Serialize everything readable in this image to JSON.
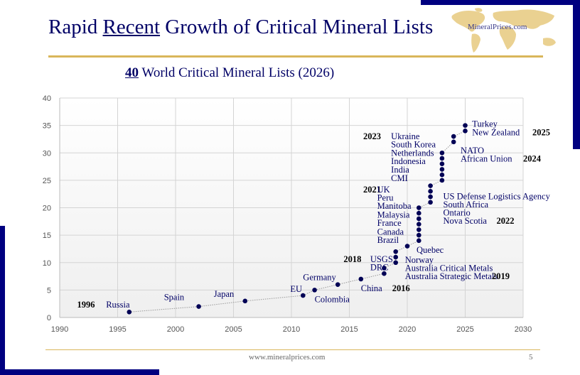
{
  "slide": {
    "title_pre": "Rapid ",
    "title_underlined": "Recent",
    "title_post": " Growth of Critical Mineral Lists",
    "logo_text": "MineralPrices.com",
    "subtitle_number": "40",
    "subtitle_rest": " World Critical Mineral Lists (2026)",
    "footer_url": "www.mineralprices.com",
    "page_number": "5"
  },
  "colors": {
    "navy": "#000080",
    "gold": "#d9b65a",
    "marker": "#000055",
    "label": "#000066"
  },
  "chart_data": {
    "type": "scatter",
    "title": "40 World Critical Mineral Lists (2026)",
    "xlabel": "",
    "ylabel": "",
    "xlim": [
      1990,
      2030
    ],
    "ylim": [
      0,
      40
    ],
    "x_ticks": [
      "1990",
      "1995",
      "2000",
      "2005",
      "2010",
      "2015",
      "2020",
      "2025",
      "2030"
    ],
    "y_ticks": [
      "0",
      "5",
      "10",
      "15",
      "20",
      "25",
      "30",
      "35",
      "40"
    ],
    "grid": true,
    "connector": "dotted line",
    "points": [
      {
        "x": 1996,
        "y": 1,
        "label": "Russia"
      },
      {
        "x": 2002,
        "y": 2,
        "label": "Spain"
      },
      {
        "x": 2006,
        "y": 3,
        "label": "Japan"
      },
      {
        "x": 2011,
        "y": 4,
        "label": "EU"
      },
      {
        "x": 2012,
        "y": 5,
        "label": "Colombia"
      },
      {
        "x": 2014,
        "y": 6,
        "label": "Germany"
      },
      {
        "x": 2016,
        "y": 7,
        "label": "China"
      },
      {
        "x": 2018,
        "y": 8,
        "label": "DRC"
      },
      {
        "x": 2018,
        "y": 9,
        "label": "USGS"
      },
      {
        "x": 2019,
        "y": 10,
        "label": "Australia Strategic Metals"
      },
      {
        "x": 2019,
        "y": 11,
        "label": "Australia Critical Metals"
      },
      {
        "x": 2019,
        "y": 12,
        "label": "Norway"
      },
      {
        "x": 2020,
        "y": 13,
        "label": "Quebec"
      },
      {
        "x": 2021,
        "y": 14,
        "label": "Brazil"
      },
      {
        "x": 2021,
        "y": 15,
        "label": "Canada"
      },
      {
        "x": 2021,
        "y": 16,
        "label": "France"
      },
      {
        "x": 2021,
        "y": 17,
        "label": "Malaysia"
      },
      {
        "x": 2021,
        "y": 18,
        "label": "Manitoba"
      },
      {
        "x": 2021,
        "y": 19,
        "label": "Peru"
      },
      {
        "x": 2021,
        "y": 20,
        "label": "UK"
      },
      {
        "x": 2022,
        "y": 21,
        "label": "Nova Scotia"
      },
      {
        "x": 2022,
        "y": 22,
        "label": "Ontario"
      },
      {
        "x": 2022,
        "y": 23,
        "label": "South Africa"
      },
      {
        "x": 2022,
        "y": 24,
        "label": "US Defense Logistics Agency"
      },
      {
        "x": 2023,
        "y": 25,
        "label": "CMI"
      },
      {
        "x": 2023,
        "y": 26,
        "label": "India"
      },
      {
        "x": 2023,
        "y": 27,
        "label": "Indonesia"
      },
      {
        "x": 2023,
        "y": 28,
        "label": "Netherlands"
      },
      {
        "x": 2023,
        "y": 29,
        "label": "South Korea"
      },
      {
        "x": 2023,
        "y": 30,
        "label": "Ukraine"
      },
      {
        "x": 2024,
        "y": 32,
        "label": "African Union"
      },
      {
        "x": 2024,
        "y": 33,
        "label": "NATO"
      },
      {
        "x": 2025,
        "y": 34,
        "label": "New Zealand"
      },
      {
        "x": 2025,
        "y": 35,
        "label": "Turkey"
      }
    ],
    "annotations": [
      {
        "text": "1996",
        "bold": true,
        "x": 1991.5,
        "y": 2.3
      },
      {
        "text": "Russia",
        "x": 1994,
        "y": 2.3
      },
      {
        "text": "Spain",
        "x": 1999,
        "y": 3.7
      },
      {
        "text": "Japan",
        "x": 2003.3,
        "y": 4.3
      },
      {
        "text": "EU",
        "x": 2009.9,
        "y": 5.2
      },
      {
        "text": "Germany",
        "x": 2011,
        "y": 7.3
      },
      {
        "text": "Colombia",
        "x": 2012,
        "y": 3.3
      },
      {
        "text": "China",
        "x": 2016,
        "y": 5.3
      },
      {
        "text": "2016",
        "bold": true,
        "x": 2018.7,
        "y": 5.3
      },
      {
        "text": "2018",
        "bold": true,
        "x": 2014.5,
        "y": 10.6
      },
      {
        "text": "USGS",
        "x": 2016.8,
        "y": 10.6
      },
      {
        "text": "DRC",
        "x": 2016.8,
        "y": 9.1
      },
      {
        "text": "Quebec",
        "x": 2020.8,
        "y": 12.3
      },
      {
        "text": "Norway",
        "x": 2019.8,
        "y": 10.5
      },
      {
        "text": "Australia Critical Metals",
        "x": 2019.8,
        "y": 9.0
      },
      {
        "text": "Australia Strategic Metals",
        "x": 2019.8,
        "y": 7.5
      },
      {
        "text": "2019",
        "bold": true,
        "x": 2027.3,
        "y": 7.5
      },
      {
        "text": "2021",
        "bold": true,
        "x": 2016.2,
        "y": 23.3
      },
      {
        "text": "UK",
        "x": 2017.4,
        "y": 23.3
      },
      {
        "text": "Peru",
        "x": 2017.4,
        "y": 21.8
      },
      {
        "text": "Manitoba",
        "x": 2017.4,
        "y": 20.3
      },
      {
        "text": "Malaysia",
        "x": 2017.4,
        "y": 18.7
      },
      {
        "text": "France",
        "x": 2017.4,
        "y": 17.2
      },
      {
        "text": "Canada",
        "x": 2017.4,
        "y": 15.6
      },
      {
        "text": "Brazil",
        "x": 2017.4,
        "y": 14.1
      },
      {
        "text": "US Defense Logistics Agency",
        "x": 2023.1,
        "y": 22.1
      },
      {
        "text": "South Africa",
        "x": 2023.1,
        "y": 20.6
      },
      {
        "text": "Ontario",
        "x": 2023.1,
        "y": 19.1
      },
      {
        "text": "Nova Scotia",
        "x": 2023.1,
        "y": 17.6
      },
      {
        "text": "2022",
        "bold": true,
        "x": 2027.7,
        "y": 17.6
      },
      {
        "text": "2023",
        "bold": true,
        "x": 2016.2,
        "y": 33.0
      },
      {
        "text": "Ukraine",
        "x": 2018.6,
        "y": 33.0
      },
      {
        "text": "South Korea",
        "x": 2018.6,
        "y": 31.5
      },
      {
        "text": "Netherlands",
        "x": 2018.6,
        "y": 30.0
      },
      {
        "text": "Indonesia",
        "x": 2018.6,
        "y": 28.5
      },
      {
        "text": "India",
        "x": 2018.6,
        "y": 26.9
      },
      {
        "text": "CMI",
        "x": 2018.6,
        "y": 25.4
      },
      {
        "text": "NATO",
        "x": 2024.6,
        "y": 30.4
      },
      {
        "text": "African Union",
        "x": 2024.6,
        "y": 28.9
      },
      {
        "text": "2024",
        "bold": true,
        "x": 2030,
        "y": 28.9
      },
      {
        "text": "Turkey",
        "x": 2025.6,
        "y": 35.3
      },
      {
        "text": "New Zealand",
        "x": 2025.6,
        "y": 33.7
      },
      {
        "text": "2025",
        "bold": true,
        "x": 2030.8,
        "y": 33.7
      }
    ]
  }
}
